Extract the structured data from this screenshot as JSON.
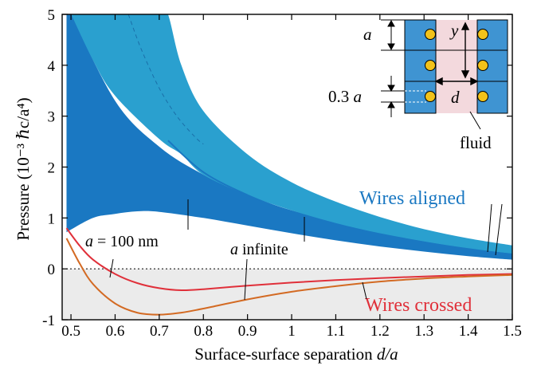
{
  "chart_data": {
    "type": "line",
    "xlabel_prefix": "Surface-surface separation ",
    "xlabel_var": "d",
    "xlabel_suffix": "/a",
    "ylabel": "Pressure (10⁻³ ℏc/a⁴)",
    "xlim": [
      0.48,
      1.5
    ],
    "ylim": [
      -1,
      5
    ],
    "xticks": [
      0.5,
      0.6,
      0.7,
      0.8,
      0.9,
      1.0,
      1.1,
      1.2,
      1.3,
      1.4,
      1.5
    ],
    "xtick_labels": [
      "0.5",
      "0.6",
      "0.7",
      "0.8",
      "0.9",
      "1",
      "1.1",
      "1.2",
      "1.3",
      "1.4",
      "1.5"
    ],
    "yticks": [
      -1,
      0,
      1,
      2,
      3,
      4,
      5
    ],
    "ytick_labels": [
      "-1",
      "0",
      "1",
      "2",
      "3",
      "4",
      "5"
    ],
    "colors": {
      "dark_blue": "#1a78c2",
      "light_blue": "#2aa0cf",
      "line_blue": "#1a78c2",
      "red": "#e0303a",
      "orange": "#d36a23",
      "shade": "#ebebeb",
      "fluid": "#f3d9dd",
      "wire": "#f2c21a",
      "block": "#3f94d2"
    },
    "bands": [
      {
        "id": "a100",
        "color": "#1a78c2",
        "upper": [
          [
            0.49,
            5.2
          ],
          [
            0.6,
            3.3
          ],
          [
            0.7,
            2.4
          ],
          [
            0.8,
            1.85
          ],
          [
            0.9,
            1.45
          ],
          [
            1.0,
            1.15
          ],
          [
            1.1,
            0.93
          ],
          [
            1.2,
            0.75
          ],
          [
            1.3,
            0.6
          ],
          [
            1.4,
            0.48
          ],
          [
            1.5,
            0.39
          ]
        ],
        "lower": [
          [
            0.49,
            0.72
          ],
          [
            0.55,
            1.0
          ],
          [
            0.6,
            1.08
          ],
          [
            0.65,
            1.13
          ],
          [
            0.7,
            1.12
          ],
          [
            0.8,
            1.0
          ],
          [
            0.9,
            0.85
          ],
          [
            1.0,
            0.7
          ],
          [
            1.1,
            0.56
          ],
          [
            1.2,
            0.44
          ],
          [
            1.3,
            0.34
          ],
          [
            1.4,
            0.25
          ],
          [
            1.5,
            0.18
          ]
        ]
      },
      {
        "id": "infinite",
        "color": "#2aa0cf",
        "upper": [
          [
            0.49,
            5.2
          ],
          [
            0.6,
            5.2
          ],
          [
            0.7,
            5.2
          ],
          [
            0.72,
            5.0
          ],
          [
            0.75,
            4.0
          ],
          [
            0.8,
            3.1
          ],
          [
            0.9,
            2.25
          ],
          [
            1.0,
            1.7
          ],
          [
            1.1,
            1.32
          ],
          [
            1.2,
            1.02
          ],
          [
            1.3,
            0.78
          ],
          [
            1.4,
            0.6
          ],
          [
            1.5,
            0.46
          ]
        ],
        "lower": [
          [
            0.49,
            5.2
          ],
          [
            0.55,
            4.1
          ],
          [
            0.6,
            3.4
          ],
          [
            0.7,
            2.55
          ],
          [
            0.75,
            2.25
          ],
          [
            0.8,
            1.85
          ],
          [
            0.9,
            1.45
          ],
          [
            1.0,
            1.15
          ],
          [
            1.1,
            0.9
          ],
          [
            1.2,
            0.7
          ],
          [
            1.3,
            0.54
          ],
          [
            1.4,
            0.4
          ],
          [
            1.5,
            0.3
          ]
        ]
      }
    ],
    "series": [
      {
        "id": "aligned-line",
        "color": "#1a78c2",
        "points": [
          [
            0.72,
            2.52
          ],
          [
            0.8,
            1.9
          ],
          [
            0.9,
            1.45
          ],
          [
            1.0,
            1.12
          ],
          [
            1.1,
            0.87
          ],
          [
            1.2,
            0.68
          ],
          [
            1.3,
            0.52
          ],
          [
            1.4,
            0.39
          ],
          [
            1.5,
            0.28
          ]
        ]
      },
      {
        "id": "crossed-a100",
        "color": "#e0303a",
        "points": [
          [
            0.49,
            0.8
          ],
          [
            0.52,
            0.45
          ],
          [
            0.55,
            0.18
          ],
          [
            0.6,
            -0.1
          ],
          [
            0.65,
            -0.28
          ],
          [
            0.7,
            -0.38
          ],
          [
            0.75,
            -0.42
          ],
          [
            0.8,
            -0.4
          ],
          [
            0.9,
            -0.33
          ],
          [
            1.0,
            -0.27
          ],
          [
            1.1,
            -0.22
          ],
          [
            1.2,
            -0.18
          ],
          [
            1.3,
            -0.15
          ],
          [
            1.4,
            -0.12
          ],
          [
            1.5,
            -0.1
          ]
        ]
      },
      {
        "id": "crossed-infinite",
        "color": "#d36a23",
        "points": [
          [
            0.49,
            0.6
          ],
          [
            0.52,
            0.1
          ],
          [
            0.55,
            -0.3
          ],
          [
            0.6,
            -0.68
          ],
          [
            0.65,
            -0.86
          ],
          [
            0.7,
            -0.9
          ],
          [
            0.75,
            -0.86
          ],
          [
            0.8,
            -0.78
          ],
          [
            0.9,
            -0.6
          ],
          [
            1.0,
            -0.45
          ],
          [
            1.1,
            -0.34
          ],
          [
            1.2,
            -0.25
          ],
          [
            1.3,
            -0.19
          ],
          [
            1.4,
            -0.15
          ],
          [
            1.5,
            -0.12
          ]
        ]
      }
    ],
    "dashed_curve": [
      [
        0.63,
        5.0
      ],
      [
        0.66,
        4.3
      ],
      [
        0.7,
        3.55
      ],
      [
        0.74,
        3.0
      ],
      [
        0.78,
        2.6
      ],
      [
        0.8,
        2.45
      ]
    ],
    "labels": {
      "wires_aligned": "Wires aligned",
      "wires_crossed": "Wires crossed",
      "a100_var": "a",
      "a100_rest": " = 100 nm",
      "ainf_var": "a",
      "ainf_rest": " infinite"
    }
  },
  "inset": {
    "label_a": "a",
    "label_y": "y",
    "label_d": "d",
    "label_03_num": "0.3 ",
    "label_03_var": "a",
    "label_fluid": "fluid"
  }
}
